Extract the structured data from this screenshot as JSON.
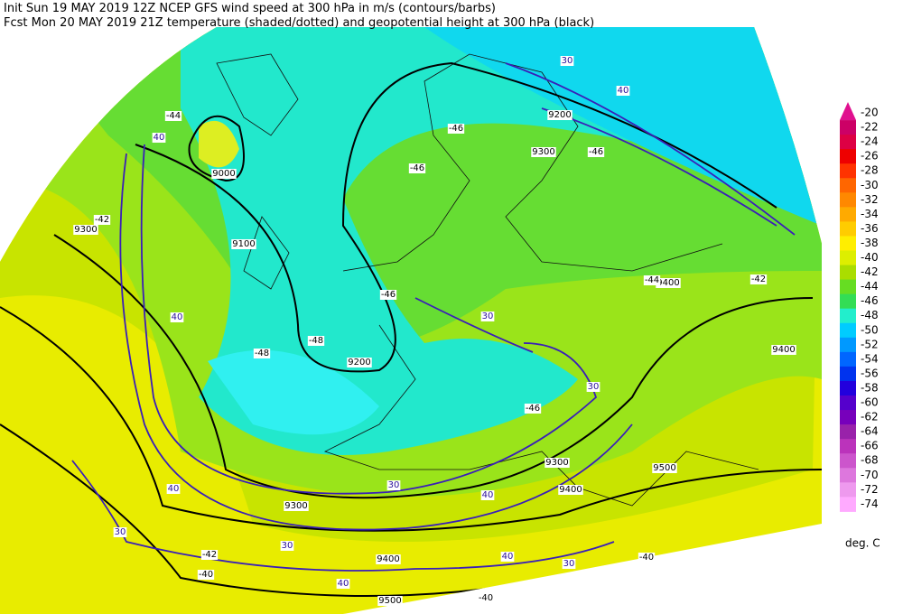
{
  "header": {
    "line1": "Init  Sun 19 MAY 2019 12Z  NCEP GFS wind speed at 300 hPa in m/s (contours/barbs)",
    "line2": "Fcst Mon 20 MAY 2019 21Z  temperature (shaded/dotted) and geopotential height at 300 hPa (black)"
  },
  "colorbar": {
    "labels": [
      "-20",
      "-22",
      "-24",
      "-26",
      "-28",
      "-30",
      "-32",
      "-34",
      "-36",
      "-38",
      "-40",
      "-42",
      "-44",
      "-46",
      "-48",
      "-50",
      "-52",
      "-54",
      "-56",
      "-58",
      "-60",
      "-62",
      "-64",
      "-66",
      "-68",
      "-70",
      "-72",
      "-74"
    ],
    "colors": [
      "#e0108f",
      "#cc0066",
      "#dd0044",
      "#ee0000",
      "#ff3300",
      "#ff6600",
      "#ff8800",
      "#ffaa00",
      "#ffcc00",
      "#ffee00",
      "#ddee00",
      "#aadd00",
      "#66dd22",
      "#33dd55",
      "#22eecc",
      "#00ccff",
      "#0099ff",
      "#0066ff",
      "#0033ee",
      "#2200dd",
      "#5500cc",
      "#7700bb",
      "#9922aa",
      "#bb33bb",
      "#cc55cc",
      "#dd77dd",
      "#ee99ee",
      "#ffaaff"
    ],
    "unit": "deg. C"
  },
  "map_labels": [
    "9000",
    "9100",
    "9200",
    "9200",
    "9300",
    "9300",
    "9300",
    "9300",
    "9400",
    "9400",
    "9500",
    "9500",
    "9400",
    "9400",
    "30",
    "40",
    "30",
    "30",
    "40",
    "40",
    "40",
    "30",
    "30",
    "40",
    "40",
    "30",
    "30",
    "40",
    "-46",
    "-44",
    "-48",
    "-46",
    "-48",
    "-46",
    "-44",
    "-42",
    "-42",
    "-40",
    "-40",
    "-40",
    "-42",
    "-46",
    "-46"
  ]
}
